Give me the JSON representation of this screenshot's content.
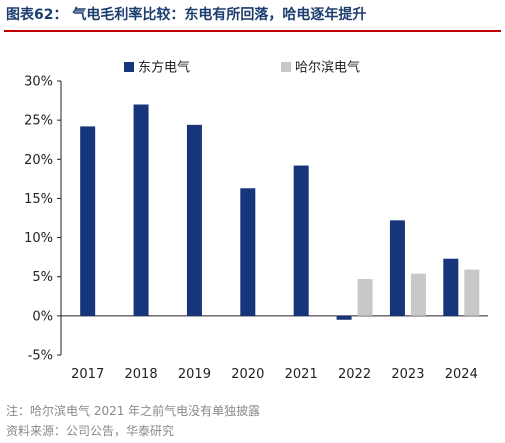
{
  "figure_title": "图表62：  气电毛利率比较：东电有所回落，哈电逐年提升",
  "notes": [
    "注：哈尔滨电气 2021 年之前气电没有单独披露",
    "资料来源：公司公告，华泰研究"
  ],
  "colors": {
    "title": "#1c3d6e",
    "rule": "#c00000",
    "note": "#8a8a8a"
  },
  "chart_data": {
    "type": "bar",
    "categories": [
      "2017",
      "2018",
      "2019",
      "2020",
      "2021",
      "2022",
      "2023",
      "2024"
    ],
    "series": [
      {
        "name": "东方电气",
        "color": "#17357a",
        "values": [
          24.2,
          27.0,
          24.4,
          16.3,
          19.2,
          -0.5,
          12.2,
          7.3
        ]
      },
      {
        "name": "哈尔滨电气",
        "color": "#c8c8c8",
        "values": [
          null,
          null,
          null,
          null,
          null,
          4.7,
          5.4,
          5.9
        ]
      }
    ],
    "ylim": [
      -5,
      30
    ],
    "yticks": [
      -5,
      0,
      5,
      10,
      15,
      20,
      25,
      30
    ],
    "ytick_labels": [
      "-5%",
      "0%",
      "5%",
      "10%",
      "15%",
      "20%",
      "25%",
      "30%"
    ],
    "grid": false,
    "legend_position": "top",
    "xlabel": "",
    "ylabel": ""
  }
}
